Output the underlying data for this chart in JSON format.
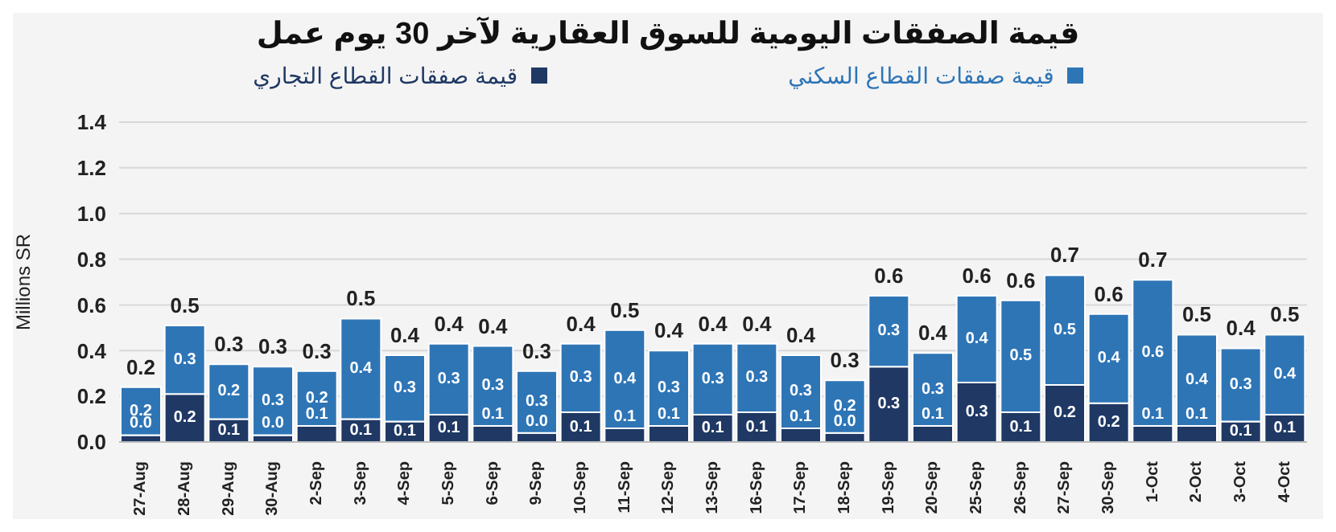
{
  "chart_data": {
    "type": "bar",
    "title": "قيمة الصفقات اليومية للسوق العقارية لآخر 30 يوم عمل",
    "ylabel": "Millions SR",
    "stacked": true,
    "grid": "y",
    "legend": "top",
    "categories": [
      "27-Aug",
      "28-Aug",
      "29-Aug",
      "30-Aug",
      "2-Sep",
      "3-Sep",
      "4-Sep",
      "5-Sep",
      "6-Sep",
      "9-Sep",
      "10-Sep",
      "11-Sep",
      "12-Sep",
      "13-Sep",
      "16-Sep",
      "17-Sep",
      "18-Sep",
      "19-Sep",
      "20-Sep",
      "25-Sep",
      "26-Sep",
      "27-Sep",
      "30-Sep",
      "1-Oct",
      "2-Oct",
      "3-Oct",
      "4-Oct"
    ],
    "series": [
      {
        "name": "قيمة صفقات القطاع التجاري",
        "color": "#1f3864",
        "values": [
          0.03,
          0.21,
          0.1,
          0.03,
          0.07,
          0.1,
          0.09,
          0.12,
          0.07,
          0.04,
          0.13,
          0.06,
          0.07,
          0.12,
          0.13,
          0.06,
          0.04,
          0.33,
          0.07,
          0.26,
          0.13,
          0.25,
          0.17,
          0.07,
          0.07,
          0.09,
          0.12
        ],
        "value_labels": [
          "0.0",
          "0.2",
          "0.1",
          "0.0",
          "0.1",
          "0.1",
          "0.1",
          "0.1",
          "0.1",
          "0.0",
          "0.1",
          "0.1",
          "0.1",
          "0.1",
          "0.1",
          "0.1",
          "0.0",
          "0.3",
          "0.1",
          "0.3",
          "0.1",
          "0.2",
          "0.2",
          "0.1",
          "0.1",
          "0.1",
          "0.1"
        ]
      },
      {
        "name": "قيمة صفقات القطاع السكني",
        "color": "#2e75b6",
        "values": [
          0.21,
          0.3,
          0.24,
          0.3,
          0.24,
          0.44,
          0.29,
          0.31,
          0.35,
          0.27,
          0.3,
          0.43,
          0.33,
          0.31,
          0.3,
          0.32,
          0.23,
          0.31,
          0.32,
          0.38,
          0.49,
          0.48,
          0.39,
          0.64,
          0.4,
          0.32,
          0.35
        ],
        "value_labels": [
          "0.2",
          "0.3",
          "0.2",
          "0.3",
          "0.2",
          "0.4",
          "0.3",
          "0.3",
          "0.3",
          "0.3",
          "0.3",
          "0.4",
          "0.3",
          "0.3",
          "0.3",
          "0.3",
          "0.2",
          "0.3",
          "0.3",
          "0.4",
          "0.5",
          "0.5",
          "0.4",
          "0.6",
          "0.4",
          "0.3",
          "0.4"
        ]
      }
    ],
    "totals": [
      "0.2",
      "0.5",
      "0.3",
      "0.3",
      "0.3",
      "0.5",
      "0.4",
      "0.4",
      "0.4",
      "0.3",
      "0.4",
      "0.5",
      "0.4",
      "0.4",
      "0.4",
      "0.4",
      "0.3",
      "0.6",
      "0.4",
      "0.6",
      "0.6",
      "0.7",
      "0.6",
      "0.7",
      "0.5",
      "0.4",
      "0.5"
    ],
    "ylim": [
      0,
      1.4
    ],
    "yticks": [
      {
        "value": 0,
        "label": "0.0"
      },
      {
        "value": 0.2,
        "label": "0.2"
      },
      {
        "value": 0.4,
        "label": "0.4"
      },
      {
        "value": 0.6,
        "label": "0.6"
      },
      {
        "value": 0.8,
        "label": "0.8"
      },
      {
        "value": 1,
        "label": "1.0"
      },
      {
        "value": 1.2,
        "label": "1.2"
      },
      {
        "value": 1.4,
        "label": "1.4"
      }
    ]
  }
}
